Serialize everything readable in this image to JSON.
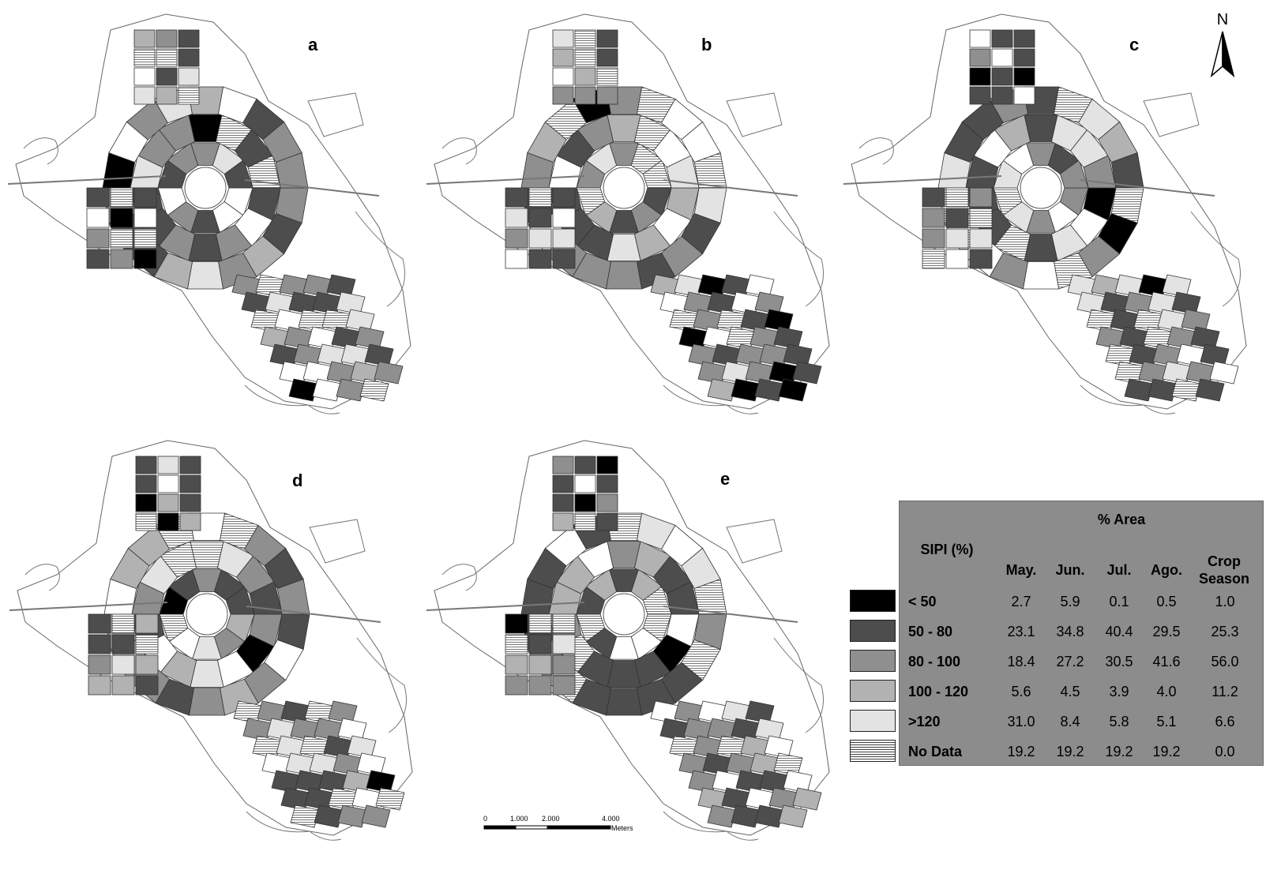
{
  "panels": [
    {
      "label": "a"
    },
    {
      "label": "b"
    },
    {
      "label": "c"
    },
    {
      "label": "d"
    },
    {
      "label": "e"
    }
  ],
  "north_arrow": {
    "label": "N"
  },
  "scale_bar": {
    "ticks": [
      "0",
      "1.000",
      "2.000",
      "4.000"
    ],
    "unit": "Meters"
  },
  "legend": {
    "row_header": "SIPI (%)",
    "group_header": "% Area",
    "columns": [
      "May.",
      "Jun.",
      "Jul.",
      "Ago.",
      "Crop Season"
    ],
    "classes": [
      {
        "label": "< 50",
        "color": "#000000",
        "values": [
          "2.7",
          "5.9",
          "0.1",
          "0.5",
          "1.0"
        ]
      },
      {
        "label": "50 - 80",
        "color": "#4d4d4d",
        "values": [
          "23.1",
          "34.8",
          "40.4",
          "29.5",
          "25.3"
        ]
      },
      {
        "label": "80 - 100",
        "color": "#8f8f8f",
        "values": [
          "18.4",
          "27.2",
          "30.5",
          "41.6",
          "56.0"
        ]
      },
      {
        "label": "100 - 120",
        "color": "#b2b2b2",
        "values": [
          "5.6",
          "4.5",
          "3.9",
          "4.0",
          "11.2"
        ]
      },
      {
        "label": ">120",
        "color": "#e3e3e3",
        "values": [
          "31.0",
          "8.4",
          "5.8",
          "5.1",
          "6.6"
        ]
      },
      {
        "label": "No Data",
        "color": "hatched",
        "values": [
          "19.2",
          "19.2",
          "19.2",
          "19.2",
          "0.0"
        ]
      }
    ]
  }
}
